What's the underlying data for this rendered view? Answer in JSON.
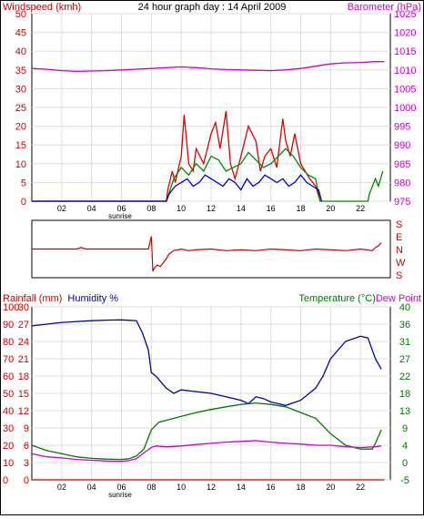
{
  "chart_data": [
    {
      "type": "line",
      "title": "24 hour graph day : 14 April 2009",
      "ylabel_left": "Windspeed (kmh)",
      "ylabel_right": "Barometer (hPa)",
      "xlim": [
        0,
        24
      ],
      "ylim_left": [
        0,
        50
      ],
      "ylim_right": [
        975,
        1025
      ],
      "grid": true,
      "x_ticks": [
        "02",
        "04",
        "06",
        "08",
        "10",
        "12",
        "14",
        "16",
        "18",
        "20",
        "22"
      ],
      "x_tick_values": [
        2,
        4,
        6,
        8,
        10,
        12,
        14,
        16,
        18,
        20,
        22
      ],
      "y_ticks_left": [
        0,
        5,
        10,
        15,
        20,
        25,
        30,
        35,
        40,
        45,
        50
      ],
      "y_ticks_right": [
        975,
        980,
        985,
        990,
        995,
        1000,
        1005,
        1010,
        1015,
        1020,
        1025
      ],
      "annotation": "sunrise",
      "annotation_x": 6,
      "colors": {
        "barometer": "#cc00cc",
        "gust": "#dd0000",
        "average": "#008800",
        "speed": "#0000cc",
        "axis_left": "#cc0000",
        "axis_right": "#cc00cc"
      },
      "series": [
        {
          "axis": "right",
          "x": [
            0,
            1,
            2,
            3,
            4,
            5,
            6,
            7,
            8,
            9,
            10,
            11,
            12,
            13,
            14,
            15,
            16,
            17,
            18,
            19,
            20,
            21,
            22,
            23,
            23.6
          ],
          "values": [
            1010.4,
            1010.2,
            1009.8,
            1009.6,
            1009.7,
            1009.8,
            1010,
            1010.2,
            1010.4,
            1010.6,
            1010.8,
            1010.6,
            1010.3,
            1010.1,
            1010,
            1009.9,
            1009.8,
            1010,
            1010.4,
            1011,
            1011.6,
            1011.9,
            1012,
            1012.2,
            1012.2
          ]
        },
        {
          "axis": "left",
          "x": [
            0,
            9,
            9.1,
            9.4,
            9.6,
            10,
            10.2,
            10.5,
            10.8,
            11,
            11.5,
            12,
            12.3,
            12.6,
            13,
            13.3,
            13.6,
            14,
            14.5,
            15,
            15.3,
            15.6,
            16,
            16.4,
            16.8,
            17,
            17.3,
            17.6,
            18,
            18.3,
            18.6,
            19,
            19.3
          ],
          "values": [
            0,
            0,
            3,
            8,
            5,
            12,
            23,
            10,
            8,
            14,
            10,
            18,
            21,
            14,
            24,
            10,
            6,
            12,
            20,
            16,
            8,
            12,
            14,
            9,
            22,
            16,
            12,
            18,
            10,
            8,
            6,
            4,
            0
          ]
        },
        {
          "axis": "left",
          "x": [
            0,
            9,
            9.5,
            10,
            10.5,
            11,
            11.5,
            12,
            12.5,
            13,
            13.5,
            14,
            14.5,
            15,
            15.5,
            16,
            16.5,
            17,
            17.5,
            18,
            18.5,
            19,
            19.3,
            22.5,
            22.6,
            23,
            23.2,
            23.5
          ],
          "values": [
            0,
            0,
            6,
            9,
            7,
            10,
            8,
            12,
            11,
            8,
            9,
            10,
            13,
            11,
            9,
            10,
            12,
            14,
            12,
            9,
            7,
            6,
            0,
            0,
            2,
            6,
            4,
            8
          ]
        },
        {
          "axis": "left",
          "x": [
            0,
            9,
            9.2,
            9.6,
            10,
            10.4,
            10.8,
            11.2,
            11.6,
            12,
            12.4,
            12.8,
            13.2,
            13.6,
            14,
            14.4,
            14.8,
            15.2,
            15.6,
            16,
            16.4,
            16.8,
            17.2,
            17.6,
            18,
            18.4,
            18.8,
            19.2,
            19.4
          ],
          "values": [
            0,
            0,
            2,
            4,
            5,
            6,
            4,
            5,
            7,
            6,
            5,
            4,
            6,
            5,
            3,
            6,
            4,
            5,
            7,
            6,
            5,
            6,
            4,
            5,
            7,
            5,
            4,
            3,
            0
          ]
        }
      ]
    },
    {
      "type": "line",
      "ylabel_right": "S E N W S",
      "right_letters": [
        "S",
        "E",
        "N",
        "W",
        "S"
      ],
      "xlim": [
        0,
        24
      ],
      "ylim": [
        0,
        360
      ],
      "color": "#cc0000",
      "x": [
        0,
        0.5,
        1,
        2,
        3,
        3.3,
        3.6,
        4,
        5,
        6,
        7,
        7.5,
        7.8,
        8,
        8.1,
        8.2,
        8.4,
        8.6,
        9,
        9.2,
        9.5,
        10,
        10.5,
        11,
        12,
        13,
        14,
        15,
        16,
        17,
        18,
        19,
        20,
        21,
        22,
        22.8,
        23,
        23.2,
        23.4
      ],
      "values": [
        180,
        180,
        180,
        180,
        180,
        190,
        180,
        180,
        180,
        180,
        180,
        180,
        180,
        260,
        40,
        60,
        80,
        70,
        120,
        150,
        170,
        180,
        170,
        175,
        180,
        170,
        175,
        170,
        180,
        175,
        170,
        180,
        175,
        170,
        180,
        170,
        190,
        200,
        220
      ]
    },
    {
      "type": "line",
      "ylabel_left": "Rainfall (mm)   Humidity %",
      "ylabel_right": "Temperature (°C)Dew Point",
      "xlim": [
        0,
        24
      ],
      "grid": true,
      "x_ticks": [
        "02",
        "04",
        "06",
        "08",
        "10",
        "12",
        "14",
        "16",
        "18",
        "20",
        "22"
      ],
      "x_tick_values": [
        2,
        4,
        6,
        8,
        10,
        12,
        14,
        16,
        18,
        20,
        22
      ],
      "y_ticks_humidity": [
        0,
        10,
        20,
        30,
        40,
        50,
        60,
        70,
        80,
        90,
        100
      ],
      "y_ticks_rain": [
        0,
        3,
        6,
        9,
        12,
        15,
        18,
        21,
        24,
        27,
        30
      ],
      "y_ticks_right": [
        -5,
        0,
        4,
        9,
        13,
        18,
        22,
        27,
        31,
        36,
        40
      ],
      "ylim_left": [
        0,
        100
      ],
      "ylim_right": [
        -5,
        40
      ],
      "annotation": "sunrise",
      "annotation_x": 6,
      "colors": {
        "humidity": "#0000aa",
        "temperature": "#007700",
        "dewpoint": "#cc00cc",
        "rain": "#cc0000",
        "axis_left": "#cc0000",
        "humidity_label": "#0000aa",
        "axis_right": "#007700",
        "dew_label": "#cc00cc"
      },
      "series": [
        {
          "name": "Humidity",
          "axis": "left",
          "x": [
            0,
            1,
            2,
            3,
            4,
            5,
            6,
            7,
            7.4,
            7.8,
            8,
            8.3,
            8.7,
            9,
            9.5,
            10,
            11,
            12,
            13,
            14,
            14.5,
            15,
            15.5,
            16,
            17,
            18,
            19,
            19.5,
            20,
            21,
            22,
            22.5,
            23,
            23.4
          ],
          "values": [
            89,
            90,
            91,
            91.5,
            92,
            92.3,
            92.5,
            92,
            85,
            75,
            62,
            60,
            56,
            53,
            50,
            52,
            51,
            50,
            48,
            46,
            44,
            48,
            47,
            45,
            43,
            46,
            53,
            60,
            70,
            80,
            83,
            82,
            70,
            64
          ]
        },
        {
          "name": "Temperature",
          "axis": "right",
          "x": [
            0,
            1,
            2,
            3,
            4,
            5,
            6,
            6.5,
            7,
            7.5,
            8,
            8.5,
            9,
            10,
            11,
            12,
            13,
            14,
            15,
            16,
            17,
            18,
            19,
            20,
            21,
            22,
            22.8,
            23,
            23.4
          ],
          "values": [
            4,
            2.6,
            1.8,
            1,
            0.6,
            0.4,
            0.3,
            0.5,
            1.2,
            3,
            8,
            10,
            10.5,
            11.5,
            12.5,
            13.3,
            14,
            14.6,
            15,
            14.6,
            14,
            12.5,
            11,
            7,
            4,
            3,
            3,
            4.5,
            8
          ]
        },
        {
          "name": "Dew Point",
          "axis": "right",
          "x": [
            0,
            1,
            2,
            3,
            4,
            5,
            6,
            6.5,
            7,
            7.5,
            8,
            8.3,
            9,
            10,
            11,
            12,
            13,
            14,
            15,
            16,
            17,
            18,
            19,
            20,
            21,
            22,
            23,
            23.4
          ],
          "values": [
            1.8,
            1,
            0.7,
            0.3,
            0.1,
            -0.1,
            -0.2,
            0,
            0.5,
            2,
            3.4,
            3.8,
            3.6,
            3.8,
            4.2,
            4.5,
            4.8,
            5,
            5.2,
            4.8,
            4.5,
            4.3,
            4,
            4,
            3.6,
            3.4,
            3.6,
            3.8
          ]
        },
        {
          "name": "Rainfall",
          "axis": "left",
          "x": [
            0,
            23.6
          ],
          "values": [
            0,
            0
          ]
        }
      ]
    }
  ]
}
